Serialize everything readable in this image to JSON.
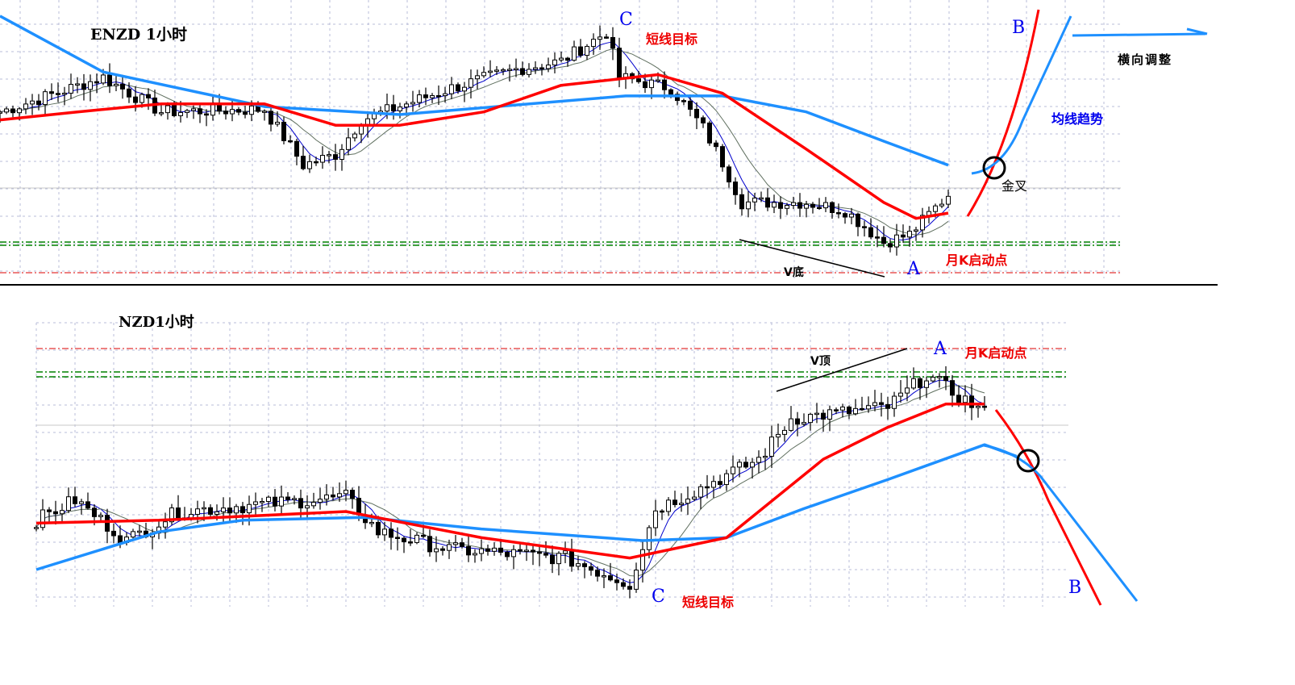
{
  "colors": {
    "ma_long": "#1e90ff",
    "ma_mid": "#ff0000",
    "ma_fast": "#0000cc",
    "ma_slow": "#607060",
    "grid": "#b8bcd8",
    "support": "#008000",
    "resistance": "#dd0000",
    "up_candle": "#ffffff",
    "down_candle": "#000000"
  },
  "chart_data": [
    {
      "type": "candlestick",
      "title": "ENZD  1小时",
      "grid": true,
      "series": [
        {
          "role": "long-ma",
          "color": "#1e90ff",
          "points": [
            [
              0,
              97
            ],
            [
              16,
              76
            ],
            [
              41,
              63
            ],
            [
              62,
              60
            ],
            [
              97,
              67
            ],
            [
              112,
              67
            ],
            [
              125,
              61
            ],
            [
              137,
              50
            ],
            [
              147,
              41
            ]
          ]
        },
        {
          "role": "mid-ma",
          "color": "#ff0000",
          "points": [
            [
              0,
              58
            ],
            [
              12,
              61
            ],
            [
              25,
              64
            ],
            [
              41,
              64
            ],
            [
              52,
              56
            ],
            [
              62,
              56
            ],
            [
              75,
              61
            ],
            [
              87,
              71
            ],
            [
              102,
              75
            ],
            [
              112,
              68
            ],
            [
              125,
              47
            ],
            [
              137,
              27
            ],
            [
              142,
              21
            ],
            [
              147,
              23
            ]
          ]
        },
        {
          "role": "price",
          "points": [
            [
              0,
              61
            ],
            [
              16,
              74
            ],
            [
              25,
              61
            ],
            [
              41,
              62
            ],
            [
              47,
              41
            ],
            [
              52,
              45
            ],
            [
              56,
              58
            ],
            [
              70,
              70
            ],
            [
              80,
              77
            ],
            [
              87,
              80
            ],
            [
              94,
              91
            ],
            [
              96,
              74
            ],
            [
              104,
              70
            ],
            [
              109,
              55
            ],
            [
              112,
              42
            ],
            [
              115,
              27
            ],
            [
              125,
              27
            ],
            [
              131,
              24
            ],
            [
              137,
              12
            ],
            [
              141,
              15
            ],
            [
              147,
              30
            ]
          ]
        }
      ],
      "annotations": {
        "c_label": "C",
        "c_text": "短线目标",
        "b_label": "B",
        "sideways": "横向调整",
        "ma_trend": "均线趋势",
        "golden_cross": "金叉",
        "a_label": "A",
        "monthly_start": "月K启动点",
        "v_bottom": "V底"
      }
    },
    {
      "type": "candlestick",
      "title": "NZD1小时",
      "grid": true,
      "series": [
        {
          "role": "long-ma",
          "color": "#1e90ff",
          "points": [
            [
              0,
              15
            ],
            [
              19,
              28
            ],
            [
              32,
              32
            ],
            [
              51,
              33
            ],
            [
              69,
              29
            ],
            [
              94,
              25
            ],
            [
              107,
              26
            ],
            [
              119,
              36
            ],
            [
              132,
              46
            ],
            [
              147,
              58
            ],
            [
              152,
              54
            ]
          ]
        },
        {
          "role": "mid-ma",
          "color": "#ff0000",
          "points": [
            [
              0,
              31
            ],
            [
              19,
              32
            ],
            [
              48,
              35
            ],
            [
              69,
              26
            ],
            [
              92,
              19
            ],
            [
              107,
              26
            ],
            [
              122,
              53
            ],
            [
              132,
              64
            ],
            [
              141,
              72
            ],
            [
              147,
              72
            ]
          ]
        },
        {
          "role": "price",
          "points": [
            [
              0,
              32
            ],
            [
              6,
              39
            ],
            [
              14,
              25
            ],
            [
              22,
              35
            ],
            [
              48,
              40
            ],
            [
              53,
              28
            ],
            [
              64,
              22
            ],
            [
              82,
              19
            ],
            [
              92,
              10
            ],
            [
              96,
              36
            ],
            [
              102,
              42
            ],
            [
              112,
              53
            ],
            [
              117,
              67
            ],
            [
              132,
              71
            ],
            [
              138,
              82
            ],
            [
              147,
              69
            ]
          ]
        }
      ],
      "annotations": {
        "a_label": "A",
        "monthly_start": "月K启动点",
        "v_top": "V顶",
        "c_label": "C",
        "c_text": "短线目标",
        "b_label": "B"
      }
    }
  ]
}
